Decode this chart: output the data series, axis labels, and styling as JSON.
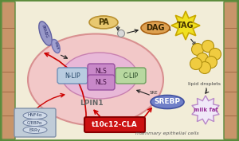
{
  "bg_outer": "#5a8a3a",
  "bg_cell": "#f2edd8",
  "bg_wall_left": "#c8956a",
  "bg_wall_right": "#c8956a",
  "nucleus_fill": "#f2c8c8",
  "nucleus_edge": "#d89090",
  "inner_nucleus_fill": "#e8b8d8",
  "inner_nucleus_edge": "#c880b0",
  "pa_fill": "#e8c870",
  "pa_edge": "#b89030",
  "dag_fill": "#dda050",
  "dag_edge": "#aa6010",
  "tag_fill": "#f0e020",
  "tag_edge": "#c8a800",
  "nlip_fill": "#b8cce0",
  "nlip_edge": "#7090b8",
  "clip_fill": "#b8d8a0",
  "clip_edge": "#70a060",
  "nls_fill": "#c888c8",
  "nls_edge": "#9850a0",
  "srebp_fill": "#7080c8",
  "srebp_edge": "#4050a0",
  "pparg_fill": "#9898c8",
  "pparg_edge": "#6060a0",
  "ppar2_fill": "#a0a0d0",
  "ppar2_edge": "#7070b0",
  "cla_fill": "#cc1111",
  "cla_edge": "#880000",
  "cla_text": "#ffffff",
  "milkfat_fill": "#f0e8f8",
  "milkfat_edge": "#b888c8",
  "tf_fill": "#c0ccd8",
  "tf_edge": "#8090a8",
  "dot_fill": "#d8d8d8",
  "dot_edge": "#909090",
  "arrow_black": "#222222",
  "arrow_red": "#cc0000",
  "droplet_fill": "#f0cc40",
  "droplet_edge": "#b09010",
  "label_lpin1": "LPIN1",
  "label_pa": "PA",
  "label_dag": "DAG",
  "label_tag": "TAG",
  "label_lipid": "lipid droplets",
  "label_milkfat": "milk fat",
  "label_nlip": "N-LIP",
  "label_clip": "C-LIP",
  "label_nls1": "NLS",
  "label_nls2": "NLS",
  "label_srebp": "SREBP",
  "label_pparg": "PPARG",
  "label_cla": "t10c12-CLA",
  "label_cell": "mammary epithelial cells",
  "label_hnf4a": "HNF4α",
  "label_cebpa": "C/EBPα",
  "label_erry": "ERRγ",
  "label_sre": "SRE"
}
